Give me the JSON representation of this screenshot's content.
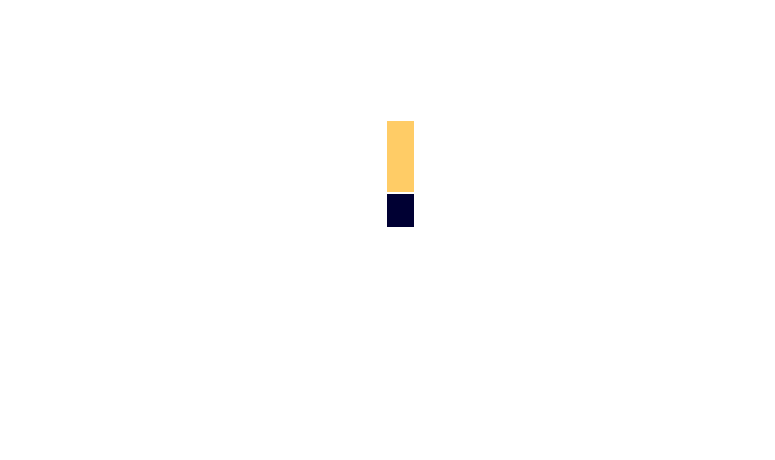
{
  "chart_data": {
    "type": "bar",
    "stacked": true,
    "categories": [
      ""
    ],
    "series": [
      {
        "values": [
          1
        ],
        "color": "#000033"
      },
      {
        "values": [
          2.2
        ],
        "color": "#ffcc66"
      }
    ],
    "ylim": [
      0,
      3.2
    ],
    "grid": false,
    "legend": "none"
  }
}
